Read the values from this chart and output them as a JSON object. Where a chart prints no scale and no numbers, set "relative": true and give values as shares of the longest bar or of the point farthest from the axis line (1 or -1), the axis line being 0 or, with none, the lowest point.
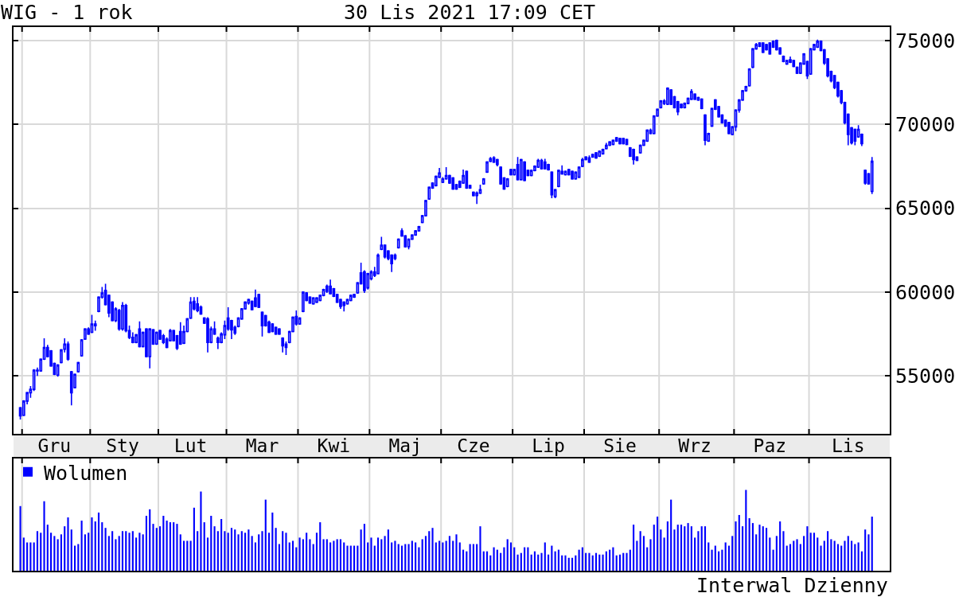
{
  "chart_data": [
    {
      "type": "candlestick",
      "title": "WIG - 1 rok",
      "subtitle": "30 Lis 2021 17:09 CET",
      "color": "#0000ff",
      "categories": [
        null,
        null,
        null,
        null,
        null,
        null,
        null,
        null,
        null,
        null,
        "Gru",
        null,
        null,
        null,
        null,
        null,
        null,
        null,
        null,
        null,
        null,
        null,
        null,
        null,
        null,
        null,
        null,
        null,
        null,
        null,
        "Sty",
        null,
        null,
        null,
        null,
        null,
        null,
        null,
        null,
        null,
        null,
        null,
        null,
        null,
        null,
        null,
        null,
        null,
        null,
        null,
        "Lut",
        null,
        null,
        null,
        null,
        null,
        null,
        null,
        null,
        null,
        null,
        null,
        null,
        null,
        null,
        null,
        null,
        null,
        null,
        null,
        null,
        "Mar",
        null,
        null,
        null,
        null,
        null,
        null,
        null,
        null,
        null,
        null,
        null,
        null,
        null,
        null,
        null,
        null,
        null,
        null,
        null,
        null,
        "Kwi",
        null,
        null,
        null,
        null,
        null,
        null,
        null,
        null,
        null,
        null,
        null,
        null,
        null,
        null,
        null,
        null,
        null,
        null,
        null,
        null,
        "Maj",
        null,
        null,
        null,
        null,
        null,
        null,
        null,
        null,
        null,
        null,
        null,
        null,
        null,
        null,
        null,
        null,
        null,
        null,
        null,
        "Cze",
        null,
        null,
        null,
        null,
        null,
        null,
        null,
        null,
        null,
        null,
        null,
        null,
        null,
        null,
        null,
        null,
        null,
        null,
        null,
        null,
        null,
        "Lip",
        null,
        null,
        null,
        null,
        null,
        null,
        null,
        null,
        null,
        null,
        null,
        null,
        null,
        null,
        null,
        null,
        null,
        null,
        null,
        null,
        "Sie",
        null,
        null,
        null,
        null,
        null,
        null,
        null,
        null,
        null,
        null,
        null,
        null,
        null,
        null,
        null,
        null,
        null,
        null,
        null,
        null,
        null,
        "Wrz",
        null,
        null,
        null,
        null,
        null,
        null,
        null,
        null,
        null,
        null,
        null,
        null,
        null,
        null,
        null,
        null,
        null,
        null,
        null,
        null,
        null,
        "Paz",
        null,
        null,
        null,
        null,
        null,
        null,
        null,
        null,
        null,
        null,
        null,
        null,
        null,
        null,
        null,
        null,
        null,
        null,
        null,
        null,
        null,
        null,
        "Lis",
        null,
        null,
        null,
        null,
        null,
        null,
        null
      ],
      "ohlc": [
        [
          53100,
          53150,
          52410,
          52620
        ],
        [
          52650,
          53550,
          52600,
          53500
        ],
        [
          53500,
          54050,
          53300,
          54000
        ],
        [
          54000,
          54400,
          53700,
          54200
        ],
        [
          54200,
          55400,
          54100,
          55350
        ],
        [
          55350,
          55500,
          55000,
          55300
        ],
        [
          55300,
          56050,
          55250,
          56000
        ],
        [
          56000,
          57250,
          55950,
          56700
        ],
        [
          56700,
          56850,
          56100,
          56150
        ],
        [
          56500,
          56550,
          55550,
          55600
        ],
        [
          55750,
          55800,
          55050,
          55100
        ],
        [
          55050,
          55700,
          54950,
          55650
        ],
        [
          55800,
          56600,
          55750,
          56550
        ],
        [
          56600,
          57250,
          56400,
          56900
        ],
        [
          56900,
          57050,
          55900,
          56000
        ],
        [
          55250,
          55300,
          53250,
          54000
        ],
        [
          54300,
          55150,
          54250,
          55100
        ],
        [
          55250,
          55850,
          55200,
          55800
        ],
        [
          56200,
          57200,
          56150,
          57150
        ],
        [
          57200,
          57850,
          57150,
          57800
        ],
        [
          57800,
          57900,
          57450,
          57500
        ],
        [
          57600,
          58650,
          57550,
          58100
        ],
        [
          58100,
          58300,
          57700,
          58000
        ],
        [
          58850,
          59750,
          58800,
          59700
        ],
        [
          59700,
          60300,
          59600,
          59950
        ],
        [
          60100,
          60500,
          59200,
          59250
        ],
        [
          59800,
          59850,
          58500,
          58750
        ],
        [
          59400,
          59450,
          58250,
          58300
        ],
        [
          58300,
          59100,
          58200,
          59000
        ],
        [
          58900,
          59000,
          57700,
          57800
        ],
        [
          57800,
          59400,
          57700,
          59200
        ],
        [
          59200,
          59300,
          57600,
          57700
        ],
        [
          57700,
          58000,
          57200,
          57300
        ],
        [
          57300,
          57600,
          56950,
          57000
        ],
        [
          57000,
          57500,
          56950,
          57450
        ],
        [
          57800,
          58250,
          56700,
          56750
        ],
        [
          56750,
          57650,
          56700,
          57600
        ],
        [
          57800,
          57850,
          56100,
          56150
        ],
        [
          56150,
          57850,
          55450,
          57800
        ],
        [
          57750,
          57800,
          56850,
          56900
        ],
        [
          56900,
          57650,
          56850,
          57600
        ],
        [
          57700,
          57750,
          57150,
          57200
        ],
        [
          57400,
          57500,
          56900,
          57000
        ],
        [
          57200,
          57300,
          56650,
          56700
        ],
        [
          57100,
          57800,
          57050,
          57700
        ],
        [
          57700,
          57750,
          57050,
          57100
        ],
        [
          57400,
          57450,
          56550,
          56650
        ],
        [
          57650,
          58200,
          56850,
          56900
        ],
        [
          56950,
          58000,
          56900,
          57650
        ],
        [
          57650,
          58450,
          57600,
          58400
        ],
        [
          58450,
          59700,
          58400,
          59400
        ],
        [
          59450,
          59700,
          58900,
          59000
        ],
        [
          59300,
          59700,
          58800,
          58900
        ],
        [
          59100,
          59200,
          58650,
          58700
        ],
        [
          58450,
          58500,
          58100,
          58150
        ],
        [
          58400,
          58500,
          56400,
          57000
        ],
        [
          57000,
          57950,
          56950,
          57800
        ],
        [
          57800,
          58250,
          57450,
          57500
        ],
        [
          57250,
          57350,
          56600,
          57000
        ],
        [
          57000,
          57600,
          56950,
          57500
        ],
        [
          57450,
          58300,
          57200,
          58000
        ],
        [
          58450,
          59100,
          57700,
          57800
        ],
        [
          58300,
          58350,
          57200,
          57750
        ],
        [
          57900,
          58000,
          57450,
          57550
        ],
        [
          57950,
          58500,
          57900,
          58450
        ],
        [
          58400,
          59050,
          58350,
          59000
        ],
        [
          59000,
          59450,
          58950,
          59400
        ],
        [
          59350,
          59600,
          59250,
          59550
        ],
        [
          59450,
          59500,
          58900,
          58950
        ],
        [
          59650,
          60150,
          59100,
          59150
        ],
        [
          59850,
          59900,
          59050,
          59100
        ],
        [
          58800,
          58850,
          57350,
          58000
        ],
        [
          58600,
          58650,
          57950,
          58000
        ],
        [
          58200,
          58300,
          57550,
          57600
        ],
        [
          58100,
          58150,
          57600,
          57650
        ],
        [
          57900,
          57950,
          57450,
          57500
        ],
        [
          57800,
          57850,
          57450,
          57500
        ],
        [
          57250,
          57300,
          56400,
          56800
        ],
        [
          56900,
          57050,
          56250,
          56700
        ],
        [
          57000,
          57700,
          56950,
          57650
        ],
        [
          57650,
          58550,
          57600,
          58500
        ],
        [
          58550,
          58900,
          58000,
          58100
        ],
        [
          58100,
          58500,
          58050,
          58450
        ],
        [
          58850,
          60050,
          58800,
          60000
        ],
        [
          59950,
          60000,
          59450,
          59500
        ],
        [
          59700,
          59750,
          59300,
          59350
        ],
        [
          59300,
          59700,
          59250,
          59650
        ],
        [
          59400,
          59700,
          59350,
          59650
        ],
        [
          59500,
          59850,
          59450,
          59800
        ],
        [
          59800,
          60200,
          59750,
          60150
        ],
        [
          60350,
          60450,
          59950,
          60050
        ],
        [
          60350,
          60750,
          59850,
          59900
        ],
        [
          60200,
          60250,
          59700,
          59750
        ],
        [
          59850,
          59900,
          59350,
          59400
        ],
        [
          59550,
          59600,
          59000,
          59150
        ],
        [
          59400,
          59450,
          58850,
          59200
        ],
        [
          59300,
          59600,
          59250,
          59550
        ],
        [
          59500,
          59850,
          59450,
          59800
        ],
        [
          59700,
          59900,
          59650,
          59850
        ],
        [
          59950,
          60600,
          59900,
          60550
        ],
        [
          61150,
          61750,
          60450,
          60500
        ],
        [
          61200,
          61300,
          59950,
          60100
        ],
        [
          60250,
          61150,
          60150,
          61100
        ],
        [
          60800,
          61300,
          60700,
          61200
        ],
        [
          61200,
          61500,
          60900,
          61000
        ],
        [
          61100,
          62300,
          61050,
          62200
        ],
        [
          62550,
          63300,
          62500,
          62800
        ],
        [
          62800,
          62850,
          62000,
          62100
        ],
        [
          62450,
          62500,
          61900,
          62000
        ],
        [
          62200,
          62250,
          61200,
          61700
        ],
        [
          62200,
          62300,
          61900,
          62000
        ],
        [
          62650,
          63200,
          62600,
          63150
        ],
        [
          63650,
          63800,
          63300,
          63350
        ],
        [
          63350,
          63400,
          62650,
          62700
        ],
        [
          62700,
          63200,
          62550,
          63150
        ],
        [
          63150,
          63450,
          63100,
          63400
        ],
        [
          63400,
          63700,
          63350,
          63650
        ],
        [
          63650,
          63950,
          63600,
          63900
        ],
        [
          64150,
          64600,
          64100,
          64550
        ],
        [
          64550,
          65500,
          64500,
          65450
        ],
        [
          65550,
          66300,
          65500,
          66250
        ],
        [
          66500,
          66550,
          66150,
          66200
        ],
        [
          66350,
          66950,
          66300,
          66900
        ],
        [
          66850,
          67400,
          66800,
          67100
        ],
        [
          66550,
          66850,
          66500,
          66750
        ],
        [
          66750,
          67450,
          66700,
          66950
        ],
        [
          66950,
          67000,
          66450,
          66500
        ],
        [
          66800,
          66850,
          66100,
          66150
        ],
        [
          66400,
          66450,
          66100,
          66150
        ],
        [
          66600,
          66650,
          66200,
          66250
        ],
        [
          66500,
          67300,
          66450,
          66950
        ],
        [
          67200,
          67250,
          66150,
          66200
        ],
        [
          66350,
          66400,
          66150,
          66200
        ],
        [
          65950,
          66000,
          65700,
          65750
        ],
        [
          65750,
          66000,
          65250,
          65900
        ],
        [
          65900,
          66400,
          65850,
          66100
        ],
        [
          66450,
          66800,
          66400,
          66750
        ],
        [
          67150,
          67800,
          67100,
          67750
        ],
        [
          67800,
          68050,
          67750,
          67950
        ],
        [
          68000,
          68100,
          67700,
          67750
        ],
        [
          67900,
          67950,
          67500,
          67600
        ],
        [
          67450,
          67500,
          66400,
          66450
        ],
        [
          66800,
          66850,
          66100,
          66150
        ],
        [
          66300,
          66800,
          66250,
          66750
        ],
        [
          67300,
          67350,
          66950,
          67000
        ],
        [
          67000,
          67350,
          66950,
          67300
        ],
        [
          67600,
          68050,
          66650,
          66700
        ],
        [
          66700,
          67950,
          66650,
          67900
        ],
        [
          67750,
          67800,
          66600,
          66650
        ],
        [
          67250,
          67300,
          66900,
          66950
        ],
        [
          66950,
          67300,
          66900,
          67250
        ],
        [
          67250,
          67550,
          67200,
          67500
        ],
        [
          67450,
          67950,
          67400,
          67850
        ],
        [
          67850,
          67950,
          67300,
          67350
        ],
        [
          67750,
          67950,
          67300,
          67350
        ],
        [
          67600,
          67650,
          67250,
          67300
        ],
        [
          67150,
          67200,
          65600,
          65800
        ],
        [
          65700,
          66150,
          65600,
          66100
        ],
        [
          66300,
          67300,
          66250,
          67250
        ],
        [
          67200,
          67550,
          67000,
          67050
        ],
        [
          67000,
          67250,
          66950,
          67200
        ],
        [
          67300,
          67350,
          66950,
          67000
        ],
        [
          67200,
          67250,
          66700,
          66750
        ],
        [
          66750,
          67200,
          66700,
          67150
        ],
        [
          66850,
          67500,
          66800,
          67450
        ],
        [
          67500,
          68000,
          67450,
          67900
        ],
        [
          68050,
          68100,
          67850,
          67900
        ],
        [
          68000,
          68150,
          67700,
          67750
        ],
        [
          68200,
          68250,
          68000,
          68050
        ],
        [
          68300,
          68350,
          67950,
          68000
        ],
        [
          68100,
          68450,
          68050,
          68400
        ],
        [
          68250,
          68550,
          68200,
          68500
        ],
        [
          68550,
          68900,
          68500,
          68750
        ],
        [
          68750,
          69000,
          68700,
          68950
        ],
        [
          68800,
          69100,
          68750,
          69050
        ],
        [
          69200,
          69250,
          68950,
          69000
        ],
        [
          69150,
          69200,
          68800,
          68850
        ],
        [
          69150,
          69200,
          68800,
          68850
        ],
        [
          69100,
          69150,
          68750,
          68800
        ],
        [
          68600,
          68650,
          68050,
          68100
        ],
        [
          68500,
          68550,
          67600,
          67900
        ],
        [
          68050,
          68100,
          67800,
          67850
        ],
        [
          68300,
          68800,
          68250,
          68750
        ],
        [
          68750,
          69100,
          68700,
          69050
        ],
        [
          69000,
          69700,
          68950,
          69650
        ],
        [
          69650,
          69750,
          69400,
          69450
        ],
        [
          69450,
          70550,
          69400,
          70500
        ],
        [
          70500,
          70950,
          70450,
          70900
        ],
        [
          71000,
          71450,
          70950,
          71400
        ],
        [
          71250,
          71500,
          71150,
          71400
        ],
        [
          71200,
          72200,
          71150,
          72150
        ],
        [
          72050,
          72100,
          71150,
          71200
        ],
        [
          71650,
          71700,
          70950,
          71000
        ],
        [
          71350,
          71400,
          70550,
          70750
        ],
        [
          71200,
          71250,
          70950,
          71000
        ],
        [
          71000,
          71300,
          70950,
          71250
        ],
        [
          71250,
          71600,
          71200,
          71550
        ],
        [
          71500,
          72100,
          71450,
          71950
        ],
        [
          71800,
          71850,
          71450,
          71500
        ],
        [
          71450,
          71650,
          71400,
          71600
        ],
        [
          71500,
          71550,
          70900,
          70950
        ],
        [
          70550,
          70600,
          68750,
          69050
        ],
        [
          69000,
          69500,
          68950,
          69450
        ],
        [
          69900,
          71000,
          69850,
          70950
        ],
        [
          71450,
          71500,
          70850,
          70900
        ],
        [
          71050,
          71100,
          70400,
          70450
        ],
        [
          70550,
          70600,
          70050,
          70100
        ],
        [
          70250,
          70300,
          69850,
          69900
        ],
        [
          70100,
          70150,
          69400,
          69450
        ],
        [
          69400,
          69900,
          69350,
          69850
        ],
        [
          69850,
          70900,
          69600,
          70850
        ],
        [
          70850,
          71500,
          70700,
          71450
        ],
        [
          71450,
          72050,
          71400,
          72000
        ],
        [
          72000,
          72300,
          71950,
          72250
        ],
        [
          72300,
          73350,
          72250,
          73300
        ],
        [
          73400,
          74550,
          73350,
          74500
        ],
        [
          74500,
          74850,
          74450,
          74750
        ],
        [
          74850,
          74900,
          74600,
          74650
        ],
        [
          74850,
          74900,
          74250,
          74300
        ],
        [
          74750,
          74800,
          74400,
          74450
        ],
        [
          74850,
          74900,
          74150,
          74200
        ],
        [
          74950,
          75000,
          74550,
          74600
        ],
        [
          75000,
          75050,
          74400,
          74450
        ],
        [
          74550,
          74600,
          74150,
          74200
        ],
        [
          74050,
          74100,
          73700,
          73750
        ],
        [
          73600,
          73850,
          73550,
          73800
        ],
        [
          73850,
          74050,
          73650,
          73700
        ],
        [
          73800,
          73850,
          73400,
          73450
        ],
        [
          73400,
          73450,
          73000,
          73050
        ],
        [
          73050,
          73700,
          73000,
          73650
        ],
        [
          73600,
          74250,
          73550,
          74200
        ],
        [
          73750,
          73800,
          72700,
          72900
        ],
        [
          73000,
          74550,
          72950,
          74500
        ],
        [
          74450,
          74800,
          74400,
          74750
        ],
        [
          74600,
          75050,
          74550,
          74950
        ],
        [
          74950,
          75000,
          74350,
          74400
        ],
        [
          74450,
          74500,
          73550,
          73650
        ],
        [
          73900,
          73950,
          72800,
          72900
        ],
        [
          73150,
          73200,
          72500,
          72600
        ],
        [
          72900,
          72950,
          72100,
          72200
        ],
        [
          72500,
          72550,
          71600,
          71700
        ],
        [
          72000,
          72050,
          71200,
          71300
        ],
        [
          71300,
          71350,
          70000,
          70100
        ],
        [
          70600,
          70650,
          68750,
          69400
        ],
        [
          69800,
          69850,
          68800,
          68900
        ],
        [
          69700,
          69750,
          68750,
          69000
        ],
        [
          69250,
          69950,
          69200,
          69700
        ],
        [
          69400,
          69450,
          68700,
          68850
        ],
        [
          67250,
          67300,
          66400,
          66500
        ],
        [
          67050,
          67100,
          66400,
          66450
        ],
        [
          66000,
          68050,
          65850,
          67800
        ]
      ],
      "ylim": [
        51550,
        75800
      ],
      "yticks": [
        55000,
        60000,
        65000,
        70000,
        75000
      ],
      "grid": "y"
    },
    {
      "type": "bar",
      "relative": true,
      "legend": "top left",
      "tick_labels": false,
      "annotations": [
        "Interwal Dzienny"
      ],
      "categories": [
        null,
        null,
        null,
        null,
        null,
        null,
        null,
        null,
        null,
        null,
        null,
        null,
        null,
        null,
        null,
        null,
        null,
        null,
        null,
        null,
        null,
        null,
        null,
        null,
        null,
        null,
        null,
        null,
        null,
        null,
        null,
        null,
        null,
        null,
        null,
        null,
        null,
        null,
        null,
        null,
        null,
        null,
        null,
        null,
        null,
        null,
        null,
        null,
        null,
        null,
        null,
        null,
        null,
        null,
        null,
        null,
        null,
        null,
        null,
        null,
        null,
        null,
        null,
        null,
        null,
        null,
        null,
        null,
        null,
        null,
        null,
        null,
        null,
        null,
        null,
        null,
        null,
        null,
        null,
        null,
        null,
        null,
        null,
        null,
        null,
        null,
        null,
        null,
        null,
        null,
        null,
        null,
        null,
        null,
        null,
        null,
        null,
        null,
        null,
        null,
        null,
        null,
        null,
        null,
        null,
        null,
        null,
        null,
        null,
        null,
        null,
        null,
        null,
        null,
        null,
        null,
        null,
        null,
        null,
        null,
        null,
        null,
        null,
        null,
        null,
        null,
        null,
        null,
        null,
        null,
        null,
        null,
        null,
        null,
        null,
        null,
        null,
        null,
        null,
        null,
        null,
        null,
        null,
        null,
        null,
        null,
        null,
        null,
        null,
        null,
        null,
        null,
        null,
        null,
        null,
        null,
        null,
        null,
        null,
        null,
        null,
        null,
        null,
        null,
        null,
        null,
        null,
        null,
        null,
        null,
        null,
        null,
        null,
        null,
        null,
        null,
        null,
        null,
        null,
        null,
        null,
        null,
        null,
        null,
        null,
        null,
        null,
        null,
        null,
        null,
        null,
        null,
        null,
        null,
        null,
        null,
        null,
        null,
        null,
        null,
        null,
        null,
        null,
        null,
        null,
        null,
        null,
        null,
        null,
        null,
        null,
        null,
        null,
        null,
        null,
        null,
        null,
        null,
        null,
        null,
        null,
        null,
        null,
        null,
        null,
        null,
        null,
        null,
        null,
        null,
        null,
        null,
        null,
        null,
        null,
        null,
        null,
        null,
        null,
        null,
        null,
        null,
        null,
        null,
        null,
        null,
        null,
        null,
        null,
        null,
        null
      ],
      "series": [
        {
          "name": "Wolumen",
          "color": "#0000ff",
          "values": [
            0.8,
            0.41,
            0.35,
            0.35,
            0.35,
            0.49,
            0.47,
            0.86,
            0.57,
            0.47,
            0.43,
            0.39,
            0.45,
            0.55,
            0.66,
            0.51,
            0.31,
            0.33,
            0.62,
            0.45,
            0.47,
            0.66,
            0.61,
            0.72,
            0.6,
            0.53,
            0.43,
            0.49,
            0.39,
            0.43,
            0.49,
            0.49,
            0.47,
            0.49,
            0.41,
            0.47,
            0.45,
            0.68,
            0.76,
            0.58,
            0.53,
            0.55,
            0.68,
            0.62,
            0.6,
            0.6,
            0.58,
            0.45,
            0.37,
            0.37,
            0.37,
            0.78,
            0.49,
            0.98,
            0.6,
            0.41,
            0.68,
            0.55,
            0.49,
            0.64,
            0.49,
            0.47,
            0.53,
            0.51,
            0.45,
            0.49,
            0.47,
            0.51,
            0.43,
            0.35,
            0.45,
            0.49,
            0.88,
            0.47,
            0.72,
            0.53,
            0.33,
            0.49,
            0.47,
            0.35,
            0.37,
            0.29,
            0.41,
            0.39,
            0.47,
            0.39,
            0.33,
            0.47,
            0.6,
            0.39,
            0.39,
            0.35,
            0.37,
            0.39,
            0.39,
            0.35,
            0.31,
            0.31,
            0.31,
            0.31,
            0.51,
            0.58,
            0.35,
            0.41,
            0.31,
            0.41,
            0.39,
            0.43,
            0.51,
            0.35,
            0.37,
            0.33,
            0.31,
            0.33,
            0.33,
            0.37,
            0.35,
            0.29,
            0.39,
            0.43,
            0.49,
            0.53,
            0.35,
            0.37,
            0.35,
            0.37,
            0.43,
            0.37,
            0.45,
            0.35,
            0.26,
            0.24,
            0.33,
            0.33,
            0.33,
            0.55,
            0.24,
            0.24,
            0.19,
            0.29,
            0.26,
            0.22,
            0.29,
            0.39,
            0.35,
            0.29,
            0.2,
            0.22,
            0.29,
            0.29,
            0.2,
            0.24,
            0.2,
            0.22,
            0.35,
            0.2,
            0.31,
            0.24,
            0.26,
            0.19,
            0.19,
            0.16,
            0.16,
            0.19,
            0.26,
            0.29,
            0.22,
            0.22,
            0.19,
            0.22,
            0.2,
            0.2,
            0.24,
            0.26,
            0.29,
            0.19,
            0.2,
            0.22,
            0.22,
            0.26,
            0.57,
            0.37,
            0.49,
            0.43,
            0.29,
            0.39,
            0.57,
            0.67,
            0.51,
            0.41,
            0.61,
            0.88,
            0.51,
            0.57,
            0.57,
            0.55,
            0.59,
            0.55,
            0.41,
            0.49,
            0.55,
            0.55,
            0.35,
            0.26,
            0.31,
            0.24,
            0.26,
            0.35,
            0.31,
            0.43,
            0.61,
            0.69,
            0.55,
            1.0,
            0.65,
            0.59,
            0.45,
            0.57,
            0.55,
            0.53,
            0.41,
            0.26,
            0.43,
            0.61,
            0.49,
            0.31,
            0.33,
            0.37,
            0.39,
            0.33,
            0.43,
            0.55,
            0.47,
            0.47,
            0.41,
            0.31,
            0.37,
            0.49,
            0.39,
            0.37,
            0.33,
            0.31,
            0.37,
            0.43,
            0.37,
            0.33,
            0.35,
            0.24,
            0.51,
            0.45,
            0.67
          ]
        }
      ]
    }
  ]
}
